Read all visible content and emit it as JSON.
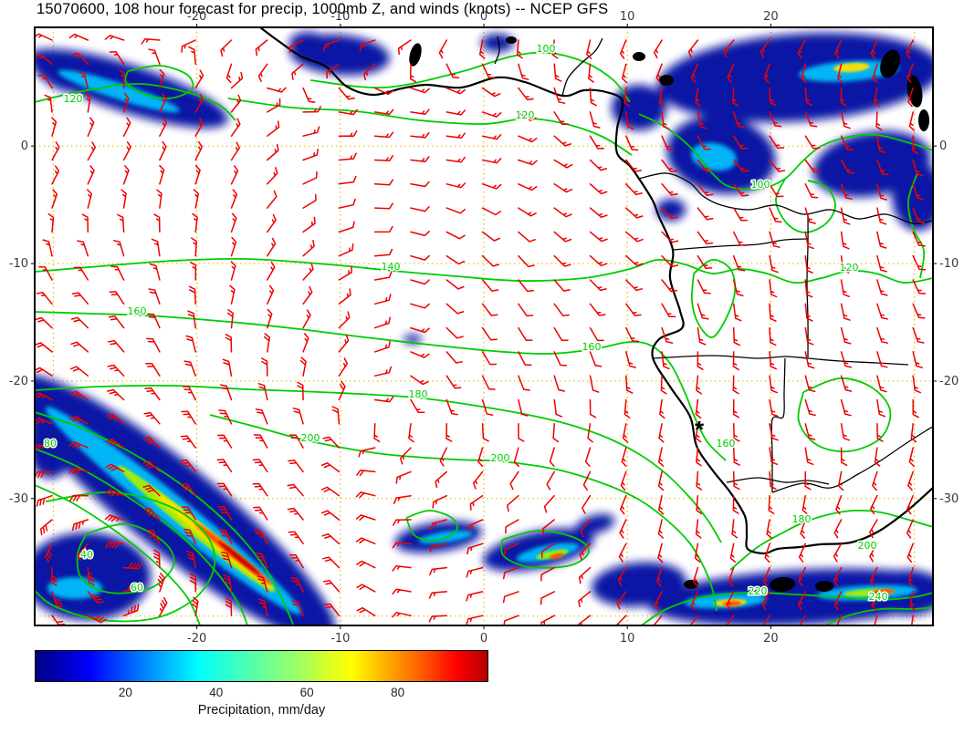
{
  "title": "15070600, 108 hour forecast for precip, 1000mb Z, and winds (knots) -- NCEP GFS",
  "map": {
    "x_tick_labels": [
      "-20",
      "-10",
      "0",
      "10",
      "20"
    ],
    "x_tick_lons": [
      -20,
      -10,
      0,
      10,
      20
    ],
    "y_tick_labels": [
      "0",
      "-10",
      "-20",
      "-30"
    ],
    "y_tick_lats": [
      0,
      -10,
      -20,
      -30
    ],
    "grid_lons": [
      -30,
      -20,
      -10,
      0,
      10,
      20,
      30
    ],
    "grid_lats": [
      0,
      -10,
      -20,
      -30,
      -40
    ],
    "lon_range": [
      -31.3,
      31.3
    ],
    "lat_range": [
      10.1,
      -40.8
    ],
    "contour_labels": [
      "120",
      "100",
      "120",
      "100",
      "140",
      "120",
      "160",
      "160",
      "180",
      "200",
      "200",
      "160",
      "180",
      "40",
      "60",
      "80",
      "200",
      "220",
      "240"
    ],
    "marker": "*",
    "colors": {
      "contour": "#00cc00",
      "wind_barb": "#ee0000",
      "grid": "#eeb800",
      "coastline": "#000000",
      "axis_text": "#3a3a3a"
    }
  },
  "colorbar": {
    "tick_labels": [
      "20",
      "40",
      "60",
      "80"
    ],
    "tick_values": [
      20,
      40,
      60,
      80
    ],
    "range": [
      0,
      100
    ],
    "label": "Precipitation, mm/day",
    "gradient": [
      "#000083 0%",
      "#0000bf 6%",
      "#0000ff 12%",
      "#0055ff 20%",
      "#00aaff 28%",
      "#00ffff 36%",
      "#2bffd4 42%",
      "#55ffaa 48%",
      "#80ff80 54%",
      "#aaff55 60%",
      "#d4ff2b 64%",
      "#ffff00 70%",
      "#ffaa00 78%",
      "#ff5500 86%",
      "#ff0000 93%",
      "#b40000 100%"
    ]
  }
}
